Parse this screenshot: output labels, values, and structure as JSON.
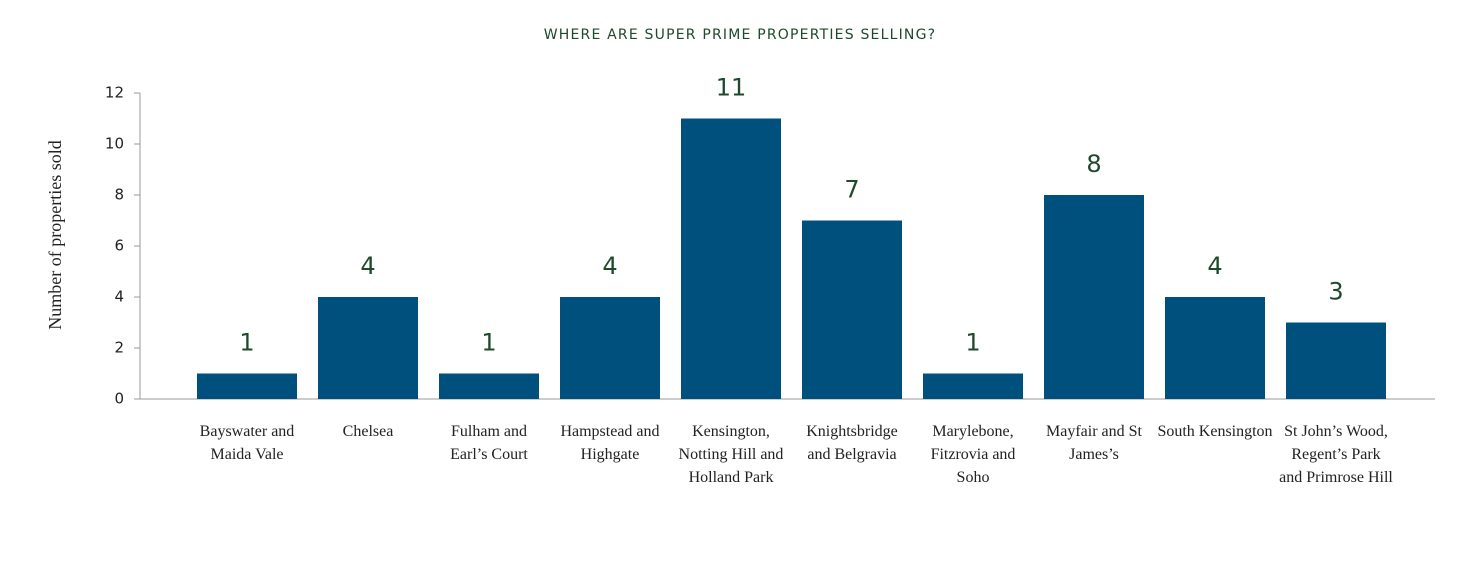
{
  "chart_data": {
    "type": "bar",
    "title": "WHERE ARE SUPER PRIME PROPERTIES SELLING?",
    "y_label": "Number of properties sold",
    "categories": [
      "Bayswater and Maida Vale",
      "Chelsea",
      "Fulham and Earl’s Court",
      "Hampstead and Highgate",
      "Kensington, Notting Hill and Holland Park",
      "Knightsbridge and Belgravia",
      "Marylebone, Fitzrovia and Soho",
      "Mayfair and St James’s",
      "South Kensington",
      "St John’s Wood, Regent’s Park and Primrose Hill"
    ],
    "values": [
      1,
      4,
      1,
      4,
      11,
      7,
      1,
      8,
      4,
      3
    ],
    "color": "#00507e",
    "label_color": "#1d4a2a",
    "ylim": [
      0,
      12
    ],
    "yticks": [
      0,
      2,
      4,
      6,
      8,
      10,
      12
    ],
    "grid": false
  }
}
